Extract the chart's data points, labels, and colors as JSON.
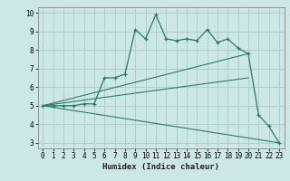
{
  "xlabel": "Humidex (Indice chaleur)",
  "bg_color": "#cce8e5",
  "grid_color": "#b0cfcc",
  "line_color": "#2a7a6e",
  "xlim": [
    -0.5,
    23.5
  ],
  "ylim": [
    2.7,
    10.3
  ],
  "yticks": [
    3,
    4,
    5,
    6,
    7,
    8,
    9,
    10
  ],
  "xticks": [
    0,
    1,
    2,
    3,
    4,
    5,
    6,
    7,
    8,
    9,
    10,
    11,
    12,
    13,
    14,
    15,
    16,
    17,
    18,
    19,
    20,
    21,
    22,
    23
  ],
  "line1_x": [
    0,
    1,
    2,
    3,
    4,
    5,
    6,
    7,
    8,
    9,
    10,
    11,
    12,
    13,
    14,
    15,
    16,
    17,
    18,
    19,
    20,
    21,
    22,
    23
  ],
  "line1_y": [
    5.0,
    5.0,
    5.0,
    5.0,
    5.1,
    5.1,
    6.5,
    6.5,
    6.7,
    9.1,
    8.6,
    9.9,
    8.6,
    8.5,
    8.6,
    8.5,
    9.1,
    8.4,
    8.6,
    8.1,
    7.8,
    4.5,
    3.9,
    3.0
  ],
  "line2_x": [
    0,
    20
  ],
  "line2_y": [
    5.0,
    7.8
  ],
  "line3_x": [
    0,
    20
  ],
  "line3_y": [
    5.0,
    6.5
  ],
  "line4_x": [
    0,
    23
  ],
  "line4_y": [
    5.0,
    3.0
  ]
}
